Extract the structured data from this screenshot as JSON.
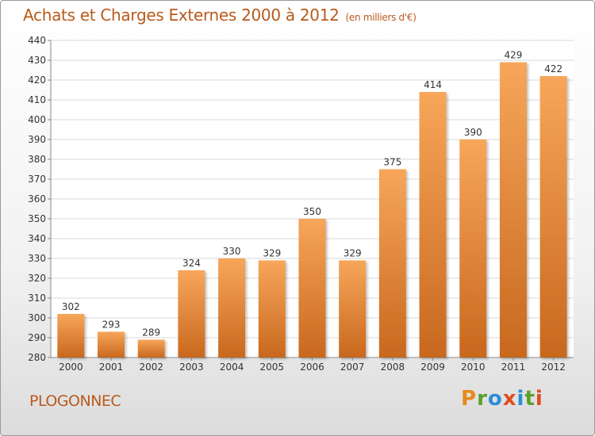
{
  "header": {
    "title": "Achats et Charges Externes 2000 à 2012",
    "unit": "(en milliers d'€)"
  },
  "footer": {
    "place": "PLOGONNEC",
    "logo_letters": [
      {
        "char": "P",
        "color": "#e8891d"
      },
      {
        "char": "r",
        "color": "#5aa02c"
      },
      {
        "char": "o",
        "color": "#2a8ed8"
      },
      {
        "char": "x",
        "color": "#e04c1f"
      },
      {
        "char": "i",
        "color": "#2a8ed8"
      },
      {
        "char": "t",
        "color": "#5aa02c"
      },
      {
        "char": "i",
        "color": "#e04c1f"
      }
    ]
  },
  "chart_data": {
    "type": "bar",
    "title": "Achats et Charges Externes 2000 à 2012",
    "subtitle": "(en milliers d'€)",
    "categories": [
      "2000",
      "2001",
      "2002",
      "2003",
      "2004",
      "2005",
      "2006",
      "2007",
      "2008",
      "2009",
      "2010",
      "2011",
      "2012"
    ],
    "values": [
      302,
      293,
      289,
      324,
      330,
      329,
      350,
      329,
      375,
      414,
      390,
      429,
      422
    ],
    "ylim": [
      280,
      440
    ],
    "yticks": [
      280,
      290,
      300,
      310,
      320,
      330,
      340,
      350,
      360,
      370,
      380,
      390,
      400,
      410,
      420,
      430,
      440
    ],
    "grid": true,
    "bar_color_top": "#f7a65a",
    "bar_color_bottom": "#c8681e"
  }
}
